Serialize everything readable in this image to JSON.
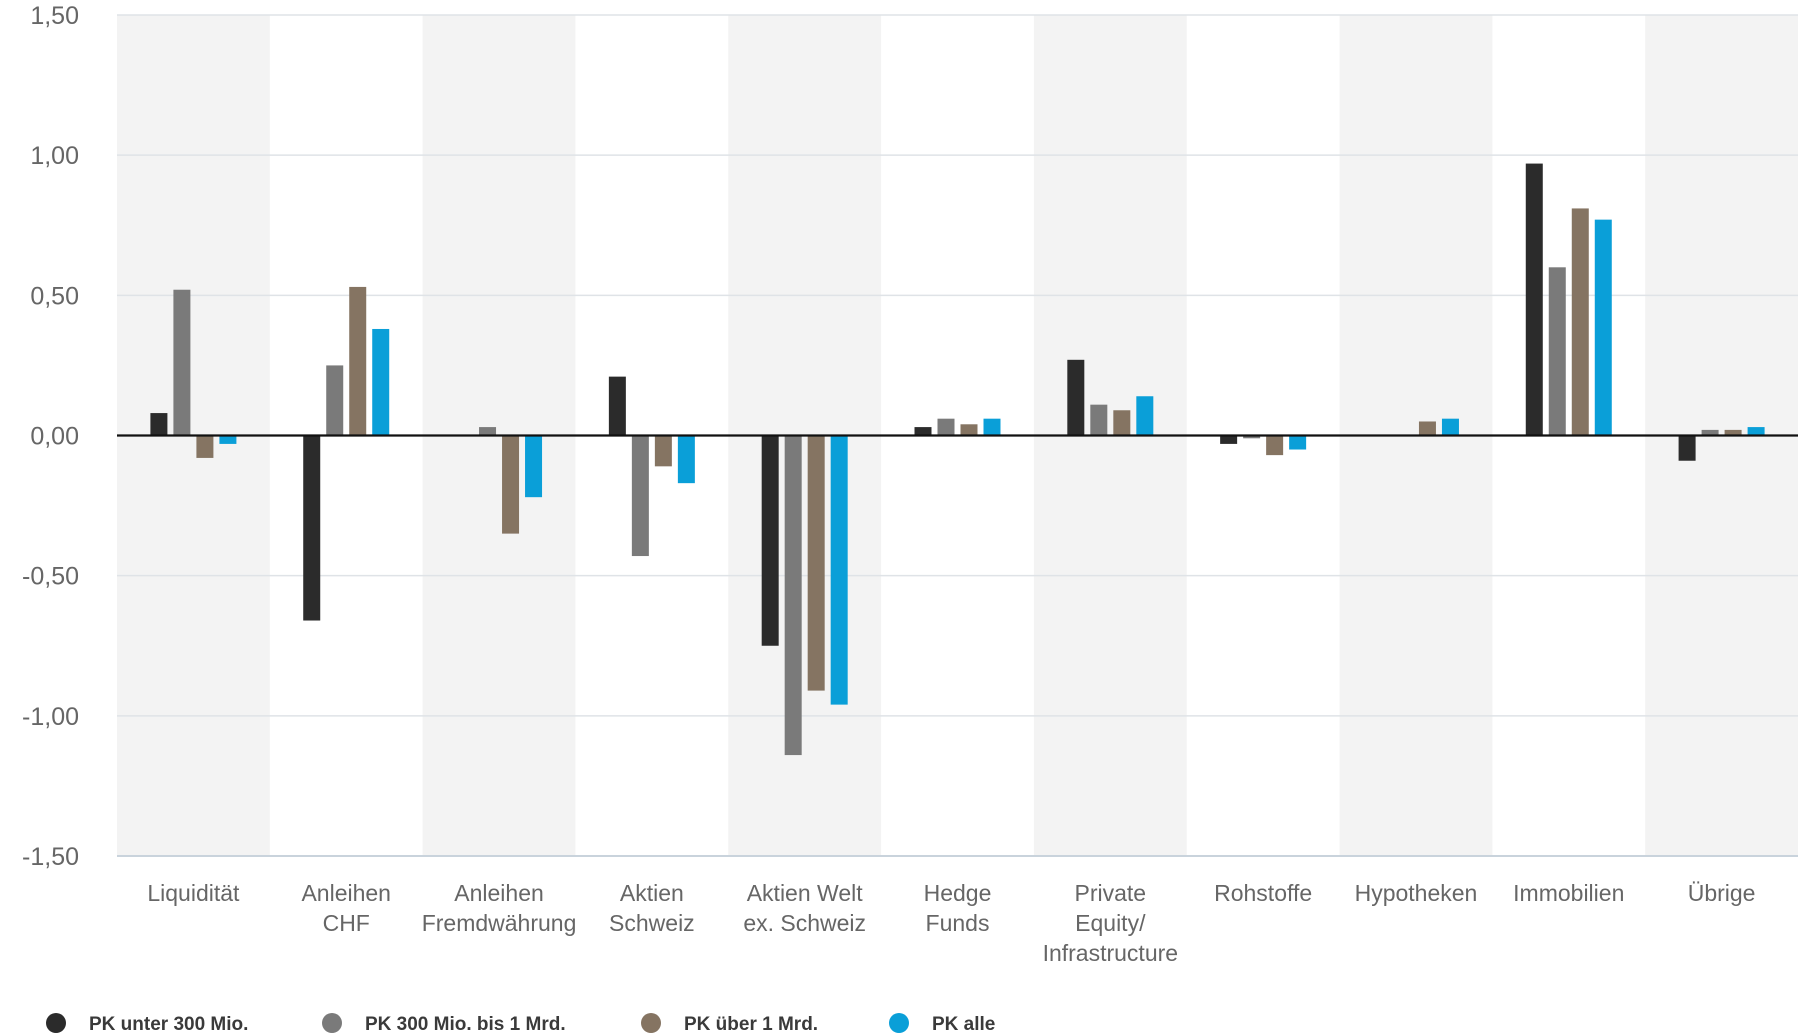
{
  "chart_data": {
    "type": "bar",
    "title": "",
    "xlabel": "",
    "ylabel": "",
    "ylim": [
      -1.5,
      1.5
    ],
    "yticks": [
      "1,50",
      "1,00",
      "0,50",
      "0,00",
      "-0,50",
      "-1,00",
      "-1,50"
    ],
    "ytick_values": [
      1.5,
      1.0,
      0.5,
      0.0,
      -0.5,
      -1.0,
      -1.5
    ],
    "grid": true,
    "legend_position": "bottom-left",
    "categories": [
      [
        "Liquidität"
      ],
      [
        "Anleihen",
        "CHF"
      ],
      [
        "Anleihen",
        "Fremdwährung"
      ],
      [
        "Aktien",
        "Schweiz"
      ],
      [
        "Aktien Welt",
        "ex. Schweiz"
      ],
      [
        "Hedge",
        "Funds"
      ],
      [
        "Private",
        "Equity/",
        "Infrastructure"
      ],
      [
        "Rohstoffe"
      ],
      [
        "Hypotheken"
      ],
      [
        "Immobilien"
      ],
      [
        "Übrige"
      ]
    ],
    "series": [
      {
        "name": "PK unter 300 Mio.",
        "color": "#2b2b2b",
        "values": [
          0.08,
          -0.66,
          0.0,
          0.21,
          -0.75,
          0.03,
          0.27,
          -0.03,
          0.0,
          0.97,
          -0.09
        ]
      },
      {
        "name": "PK 300 Mio. bis 1 Mrd.",
        "color": "#7a7a7a",
        "values": [
          0.52,
          0.25,
          0.03,
          -0.43,
          -1.14,
          0.06,
          0.11,
          -0.01,
          0.0,
          0.6,
          0.02
        ]
      },
      {
        "name": "PK über 1 Mrd.",
        "color": "#857462",
        "values": [
          -0.08,
          0.53,
          -0.35,
          -0.11,
          -0.91,
          0.04,
          0.09,
          -0.07,
          0.05,
          0.81,
          0.02
        ]
      },
      {
        "name": "PK alle",
        "color": "#0a9fd8",
        "values": [
          -0.03,
          0.38,
          -0.22,
          -0.17,
          -0.96,
          0.06,
          0.14,
          -0.05,
          0.06,
          0.77,
          0.03
        ]
      }
    ]
  }
}
